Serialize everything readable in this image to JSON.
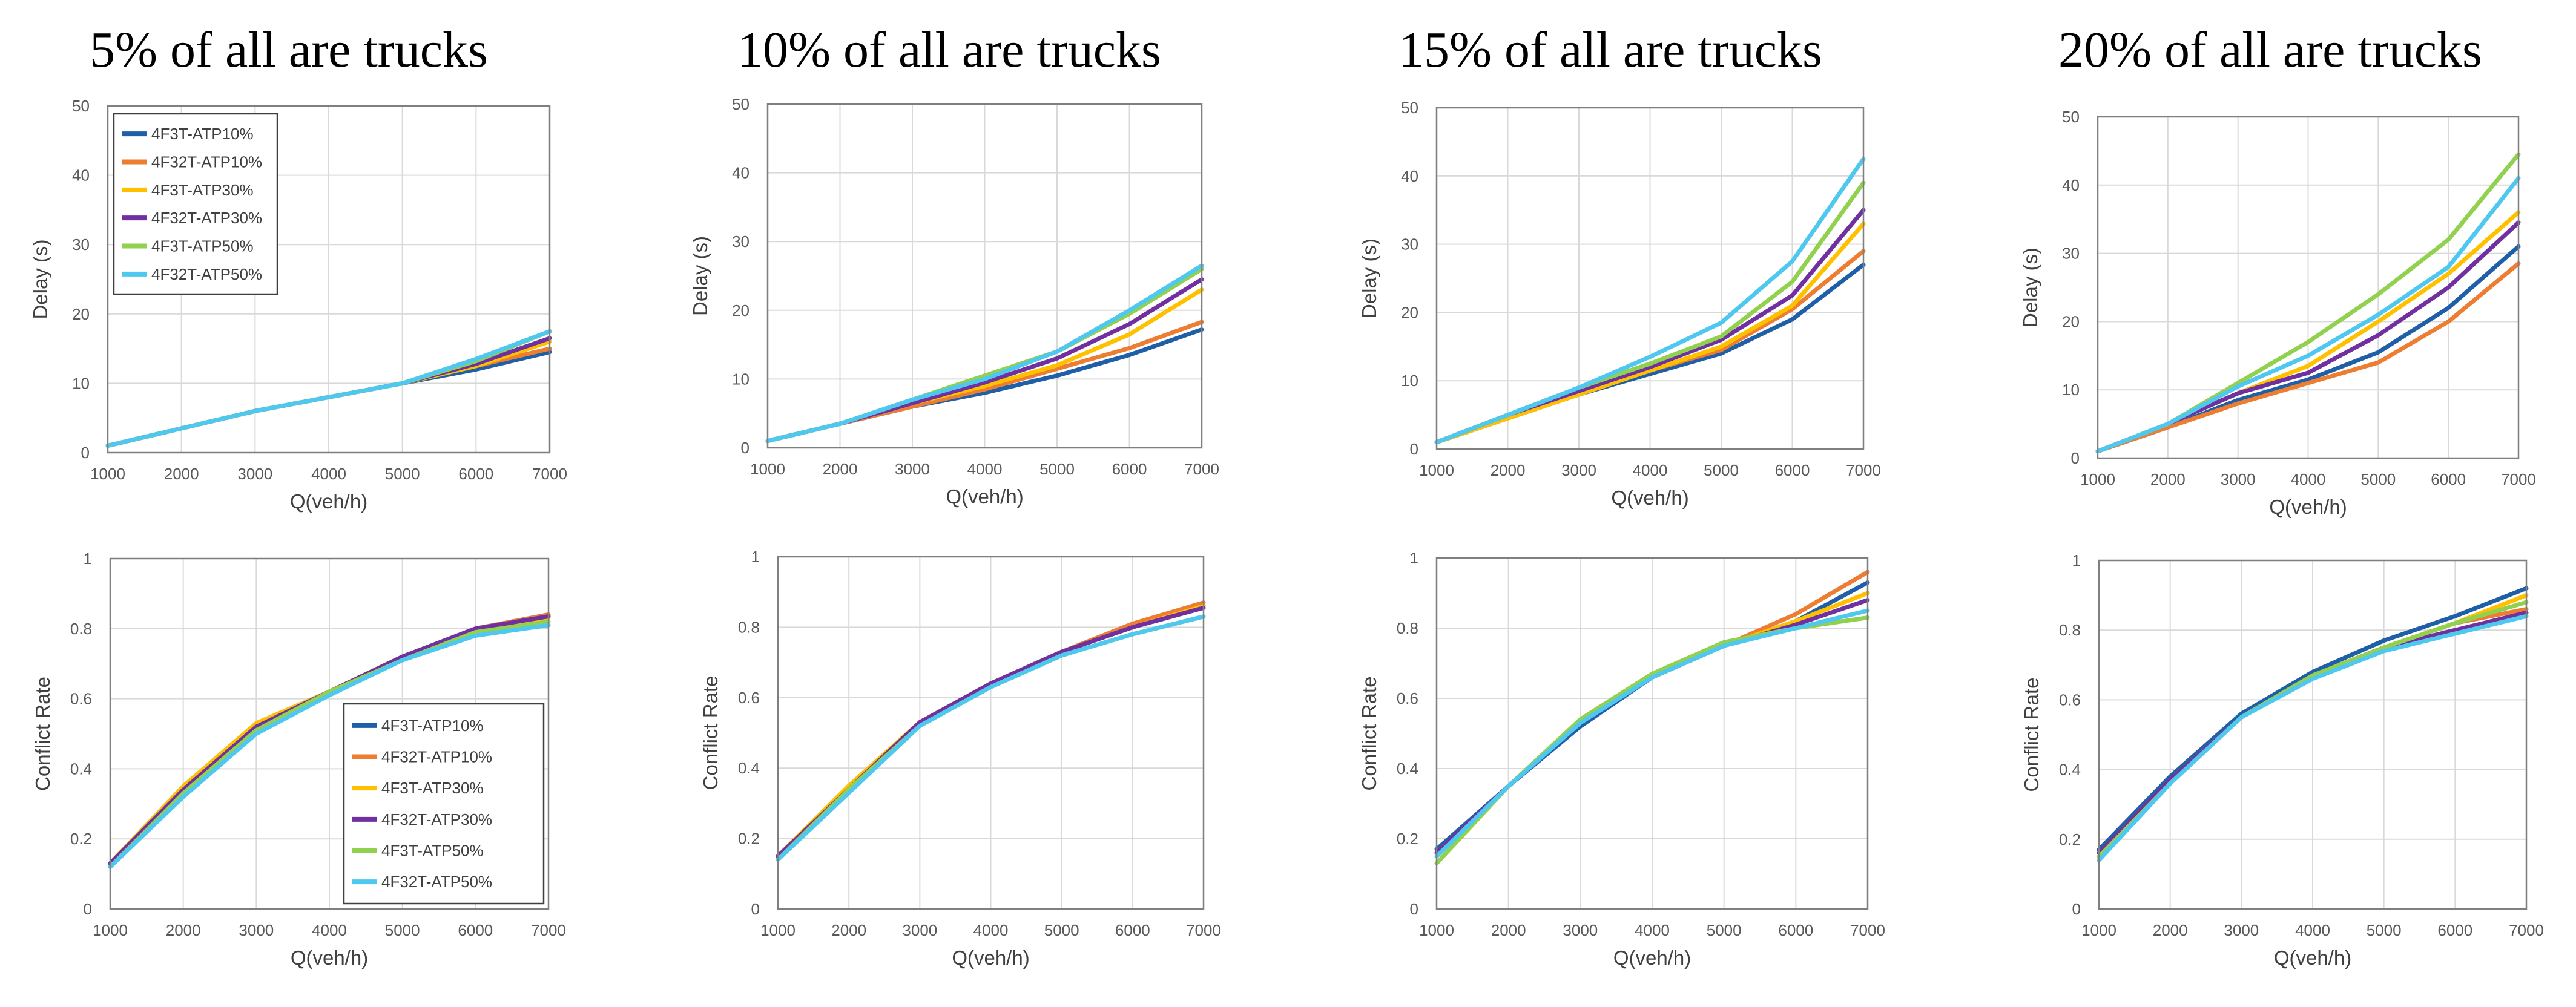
{
  "titles": [
    "5% of all are trucks",
    "10% of all are trucks",
    "15% of all are trucks",
    "20% of all are trucks"
  ],
  "series_names": [
    "4F3T-ATP10%",
    "4F32T-ATP10%",
    "4F3T-ATP30%",
    "4F32T-ATP30%",
    "4F3T-ATP50%",
    "4F32T-ATP50%"
  ],
  "series_colors": [
    "#1f5fa8",
    "#ed7d31",
    "#ffc000",
    "#7030a0",
    "#92d050",
    "#4fc8f0"
  ],
  "chart_data": [
    {
      "type": "line",
      "title": "5% of all are trucks",
      "xlabel": "Q(veh/h)",
      "ylabel": "Delay (s)",
      "x": [
        1000,
        2000,
        3000,
        4000,
        5000,
        6000,
        7000
      ],
      "xlim": [
        1000,
        7000
      ],
      "ylim": [
        0,
        50
      ],
      "yticks": [
        0,
        10,
        20,
        30,
        40,
        50
      ],
      "legend": "top-left",
      "grid": true,
      "series": [
        {
          "name": "4F3T-ATP10%",
          "values": [
            1,
            3.5,
            6,
            8,
            10,
            12,
            14.5
          ]
        },
        {
          "name": "4F32T-ATP10%",
          "values": [
            1,
            3.5,
            6,
            8,
            10,
            12.5,
            15
          ]
        },
        {
          "name": "4F3T-ATP30%",
          "values": [
            1,
            3.5,
            6,
            8,
            10,
            12.5,
            16
          ]
        },
        {
          "name": "4F32T-ATP30%",
          "values": [
            1,
            3.5,
            6,
            8,
            10,
            12.8,
            16.5
          ]
        },
        {
          "name": "4F3T-ATP50%",
          "values": [
            1,
            3.5,
            6,
            8,
            10,
            13.2,
            17.5
          ]
        },
        {
          "name": "4F32T-ATP50%",
          "values": [
            1,
            3.5,
            6,
            8,
            10,
            13.5,
            17.5
          ]
        }
      ]
    },
    {
      "type": "line",
      "title": "10% of all are trucks",
      "xlabel": "Q(veh/h)",
      "ylabel": "Delay (s)",
      "x": [
        1000,
        2000,
        3000,
        4000,
        5000,
        6000,
        7000
      ],
      "xlim": [
        1000,
        7000
      ],
      "ylim": [
        0,
        50
      ],
      "yticks": [
        0,
        10,
        20,
        30,
        40,
        50
      ],
      "legend": "none",
      "grid": true,
      "series": [
        {
          "name": "4F3T-ATP10%",
          "values": [
            1,
            3.5,
            6,
            8,
            10.5,
            13.5,
            17.2
          ]
        },
        {
          "name": "4F32T-ATP10%",
          "values": [
            1,
            3.5,
            6,
            8.5,
            11.5,
            14.5,
            18.3
          ]
        },
        {
          "name": "4F3T-ATP30%",
          "values": [
            1,
            3.5,
            6.5,
            9,
            12,
            16.5,
            23
          ]
        },
        {
          "name": "4F32T-ATP30%",
          "values": [
            1,
            3.5,
            6.5,
            9.5,
            13,
            18,
            24.5
          ]
        },
        {
          "name": "4F3T-ATP50%",
          "values": [
            1,
            3.5,
            7,
            10.5,
            14,
            19.5,
            26
          ]
        },
        {
          "name": "4F32T-ATP50%",
          "values": [
            1,
            3.5,
            7,
            10,
            14,
            20,
            26.5
          ]
        }
      ]
    },
    {
      "type": "line",
      "title": "15% of all are trucks",
      "xlabel": "Q(veh/h)",
      "ylabel": "Delay (s)",
      "x": [
        1000,
        2000,
        3000,
        4000,
        5000,
        6000,
        7000
      ],
      "xlim": [
        1000,
        7000
      ],
      "ylim": [
        0,
        50
      ],
      "yticks": [
        0,
        10,
        20,
        30,
        40,
        50
      ],
      "legend": "none",
      "grid": true,
      "series": [
        {
          "name": "4F3T-ATP10%",
          "values": [
            1,
            4.5,
            8,
            11,
            14,
            19,
            27
          ]
        },
        {
          "name": "4F32T-ATP10%",
          "values": [
            1,
            4.5,
            8,
            11.5,
            14.5,
            20.5,
            29
          ]
        },
        {
          "name": "4F3T-ATP30%",
          "values": [
            1,
            4.5,
            8,
            11.5,
            15,
            21,
            33
          ]
        },
        {
          "name": "4F32T-ATP30%",
          "values": [
            1,
            5,
            8.5,
            12,
            16,
            22.5,
            35
          ]
        },
        {
          "name": "4F3T-ATP50%",
          "values": [
            1,
            5,
            9,
            12.5,
            16.5,
            24.5,
            39
          ]
        },
        {
          "name": "4F32T-ATP50%",
          "values": [
            1,
            5,
            9,
            13.5,
            18.5,
            27.5,
            42.5
          ]
        }
      ]
    },
    {
      "type": "line",
      "title": "20% of all are trucks",
      "xlabel": "Q(veh/h)",
      "ylabel": "Delay (s)",
      "x": [
        1000,
        2000,
        3000,
        4000,
        5000,
        6000,
        7000
      ],
      "xlim": [
        1000,
        7000
      ],
      "ylim": [
        0,
        50
      ],
      "yticks": [
        0,
        10,
        20,
        30,
        40,
        50
      ],
      "legend": "none",
      "grid": true,
      "series": [
        {
          "name": "4F3T-ATP10%",
          "values": [
            1,
            4.5,
            8.5,
            11.5,
            15.5,
            22,
            31
          ]
        },
        {
          "name": "4F32T-ATP10%",
          "values": [
            1,
            4.5,
            8,
            11,
            14,
            20,
            28.5
          ]
        },
        {
          "name": "4F3T-ATP30%",
          "values": [
            1,
            5,
            9.5,
            13.5,
            20,
            27,
            36
          ]
        },
        {
          "name": "4F32T-ATP30%",
          "values": [
            1,
            5,
            9.5,
            12.5,
            18,
            25,
            34.5
          ]
        },
        {
          "name": "4F3T-ATP50%",
          "values": [
            1,
            5,
            11,
            17,
            24,
            32,
            44.5
          ]
        },
        {
          "name": "4F32T-ATP50%",
          "values": [
            1,
            5,
            10.5,
            15,
            21,
            28,
            41
          ]
        }
      ]
    },
    {
      "type": "line",
      "xlabel": "Q(veh/h)",
      "ylabel": "Conflict Rate",
      "x": [
        1000,
        2000,
        3000,
        4000,
        5000,
        6000,
        7000
      ],
      "xlim": [
        1000,
        7000
      ],
      "ylim": [
        0,
        1
      ],
      "yticks": [
        0,
        0.2,
        0.4,
        0.6,
        0.8,
        1
      ],
      "legend": "center-right",
      "grid": true,
      "series": [
        {
          "name": "4F3T-ATP10%",
          "values": [
            0.13,
            0.33,
            0.52,
            0.62,
            0.72,
            0.8,
            0.84
          ]
        },
        {
          "name": "4F32T-ATP10%",
          "values": [
            0.13,
            0.34,
            0.53,
            0.62,
            0.72,
            0.8,
            0.84
          ]
        },
        {
          "name": "4F3T-ATP30%",
          "values": [
            0.13,
            0.35,
            0.53,
            0.62,
            0.72,
            0.79,
            0.83
          ]
        },
        {
          "name": "4F32T-ATP30%",
          "values": [
            0.13,
            0.34,
            0.52,
            0.62,
            0.72,
            0.8,
            0.835
          ]
        },
        {
          "name": "4F3T-ATP50%",
          "values": [
            0.12,
            0.33,
            0.51,
            0.62,
            0.71,
            0.79,
            0.82
          ]
        },
        {
          "name": "4F32T-ATP50%",
          "values": [
            0.12,
            0.32,
            0.5,
            0.61,
            0.71,
            0.78,
            0.81
          ]
        }
      ]
    },
    {
      "type": "line",
      "xlabel": "Q(veh/h)",
      "ylabel": "Conflict Rate",
      "x": [
        1000,
        2000,
        3000,
        4000,
        5000,
        6000,
        7000
      ],
      "xlim": [
        1000,
        7000
      ],
      "ylim": [
        0,
        1
      ],
      "yticks": [
        0,
        0.2,
        0.4,
        0.6,
        0.8,
        1
      ],
      "legend": "none",
      "grid": true,
      "series": [
        {
          "name": "4F3T-ATP10%",
          "values": [
            0.15,
            0.34,
            0.53,
            0.64,
            0.73,
            0.8,
            0.86
          ]
        },
        {
          "name": "4F32T-ATP10%",
          "values": [
            0.15,
            0.34,
            0.53,
            0.64,
            0.73,
            0.81,
            0.87
          ]
        },
        {
          "name": "4F3T-ATP30%",
          "values": [
            0.15,
            0.35,
            0.53,
            0.64,
            0.73,
            0.8,
            0.86
          ]
        },
        {
          "name": "4F32T-ATP30%",
          "values": [
            0.15,
            0.34,
            0.53,
            0.64,
            0.73,
            0.8,
            0.855
          ]
        },
        {
          "name": "4F3T-ATP50%",
          "values": [
            0.14,
            0.34,
            0.52,
            0.63,
            0.72,
            0.78,
            0.83
          ]
        },
        {
          "name": "4F32T-ATP50%",
          "values": [
            0.14,
            0.33,
            0.52,
            0.63,
            0.72,
            0.78,
            0.83
          ]
        }
      ]
    },
    {
      "type": "line",
      "xlabel": "Q(veh/h)",
      "ylabel": "Conflict Rate",
      "x": [
        1000,
        2000,
        3000,
        4000,
        5000,
        6000,
        7000
      ],
      "xlim": [
        1000,
        7000
      ],
      "ylim": [
        0,
        1
      ],
      "yticks": [
        0,
        0.2,
        0.4,
        0.6,
        0.8,
        1
      ],
      "legend": "none",
      "grid": true,
      "series": [
        {
          "name": "4F3T-ATP10%",
          "values": [
            0.17,
            0.35,
            0.52,
            0.66,
            0.75,
            0.82,
            0.93
          ]
        },
        {
          "name": "4F32T-ATP10%",
          "values": [
            0.16,
            0.35,
            0.53,
            0.66,
            0.75,
            0.84,
            0.96
          ]
        },
        {
          "name": "4F3T-ATP30%",
          "values": [
            0.15,
            0.35,
            0.54,
            0.67,
            0.75,
            0.82,
            0.9
          ]
        },
        {
          "name": "4F32T-ATP30%",
          "values": [
            0.16,
            0.35,
            0.53,
            0.66,
            0.75,
            0.81,
            0.88
          ]
        },
        {
          "name": "4F3T-ATP50%",
          "values": [
            0.13,
            0.35,
            0.54,
            0.67,
            0.76,
            0.8,
            0.83
          ]
        },
        {
          "name": "4F32T-ATP50%",
          "values": [
            0.15,
            0.35,
            0.53,
            0.66,
            0.75,
            0.8,
            0.85
          ]
        }
      ]
    },
    {
      "type": "line",
      "xlabel": "Q(veh/h)",
      "ylabel": "Conflict Rate",
      "x": [
        1000,
        2000,
        3000,
        4000,
        5000,
        6000,
        7000
      ],
      "xlim": [
        1000,
        7000
      ],
      "ylim": [
        0,
        1
      ],
      "yticks": [
        0,
        0.2,
        0.4,
        0.6,
        0.8,
        1
      ],
      "legend": "none",
      "grid": true,
      "series": [
        {
          "name": "4F3T-ATP10%",
          "values": [
            0.17,
            0.38,
            0.56,
            0.68,
            0.77,
            0.84,
            0.92
          ]
        },
        {
          "name": "4F32T-ATP10%",
          "values": [
            0.16,
            0.37,
            0.55,
            0.67,
            0.75,
            0.82,
            0.86
          ]
        },
        {
          "name": "4F3T-ATP30%",
          "values": [
            0.15,
            0.37,
            0.55,
            0.67,
            0.75,
            0.82,
            0.9
          ]
        },
        {
          "name": "4F32T-ATP30%",
          "values": [
            0.16,
            0.37,
            0.55,
            0.67,
            0.75,
            0.8,
            0.85
          ]
        },
        {
          "name": "4F3T-ATP50%",
          "values": [
            0.15,
            0.36,
            0.55,
            0.67,
            0.75,
            0.82,
            0.88
          ]
        },
        {
          "name": "4F32T-ATP50%",
          "values": [
            0.14,
            0.36,
            0.55,
            0.66,
            0.74,
            0.79,
            0.84
          ]
        }
      ]
    }
  ]
}
